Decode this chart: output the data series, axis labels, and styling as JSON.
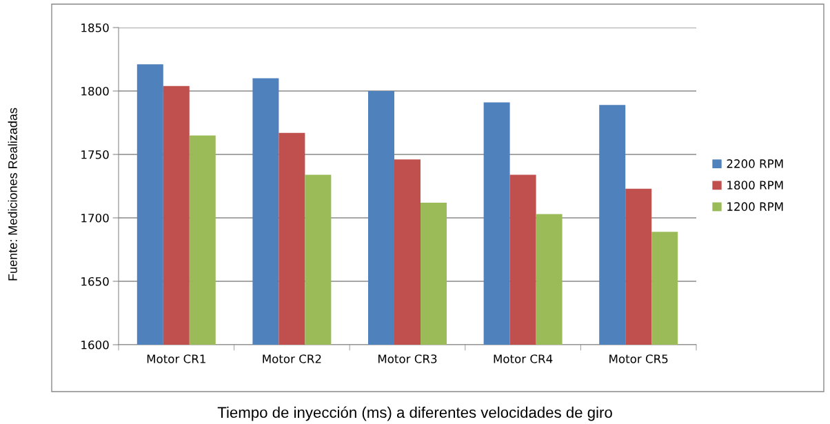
{
  "chart_data": {
    "type": "bar",
    "xlabel": "Tiempo de inyección (ms) a diferentes velocidades de giro",
    "annotations": [
      "Fuente: Mediciones Realizadas"
    ],
    "categories": [
      "Motor CR1",
      "Motor CR2",
      "Motor CR3",
      "Motor CR4",
      "Motor CR5"
    ],
    "series": [
      {
        "name": "2200 RPM",
        "color": "#4f81bd",
        "values": [
          1821,
          1810,
          1800,
          1791,
          1789
        ]
      },
      {
        "name": "1800 RPM",
        "color": "#c0504d",
        "values": [
          1804,
          1767,
          1746,
          1734,
          1723
        ]
      },
      {
        "name": "1200 RPM",
        "color": "#9bbb59",
        "values": [
          1765,
          1734,
          1712,
          1703,
          1689
        ]
      }
    ],
    "ylim": [
      1600,
      1850
    ],
    "yticks": [
      1600,
      1650,
      1700,
      1750,
      1800,
      1850
    ],
    "grid": "y",
    "legend": "right"
  }
}
